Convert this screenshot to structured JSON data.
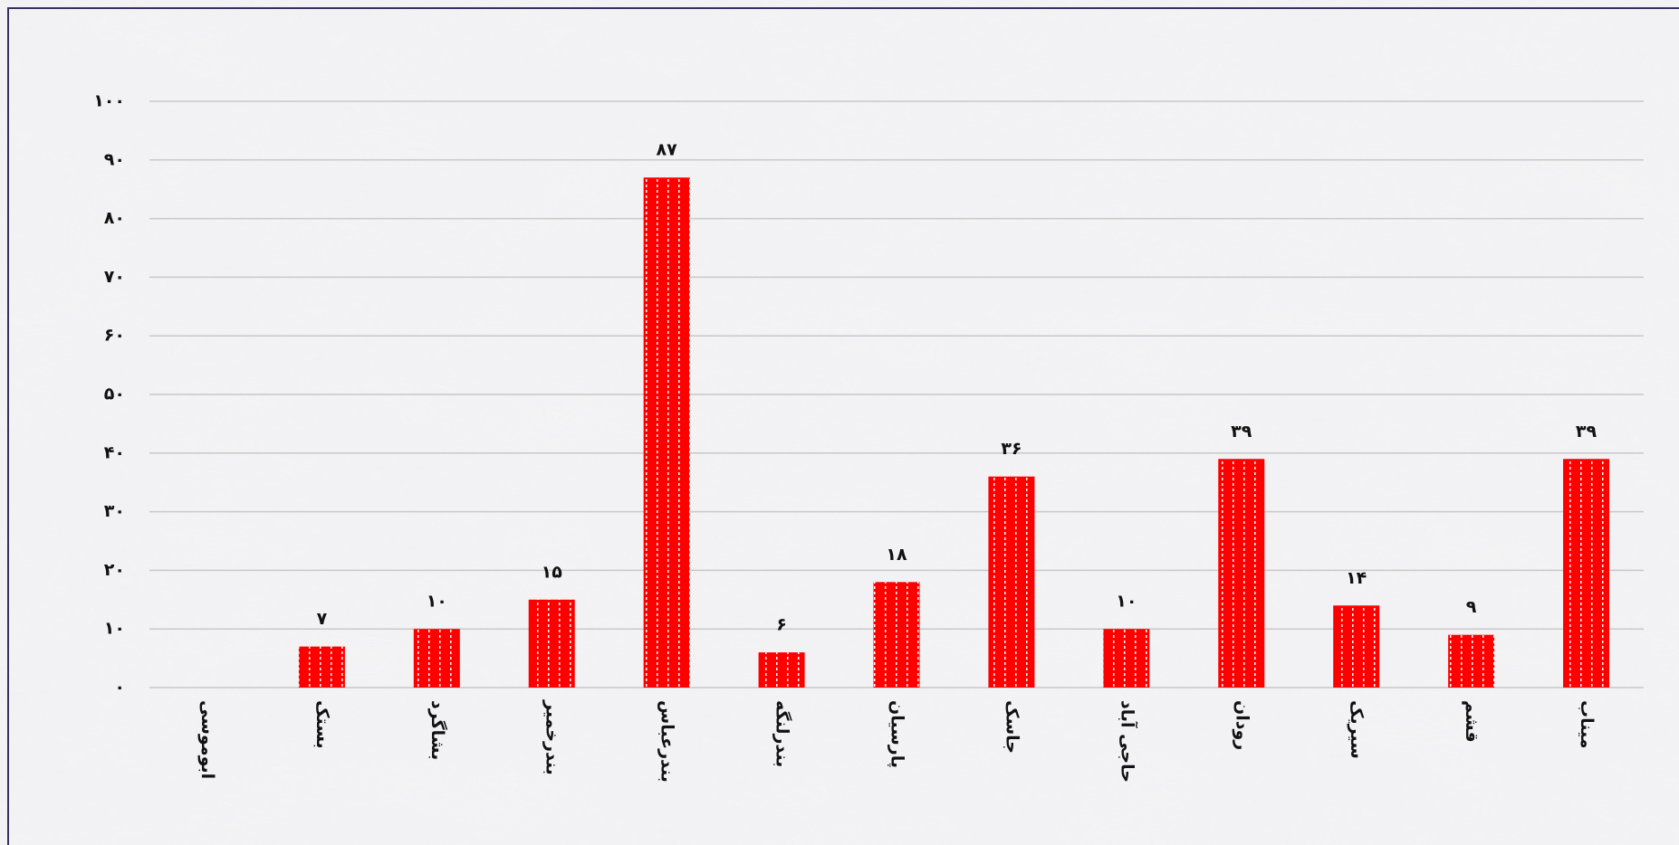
{
  "chart_data": {
    "type": "bar",
    "categories": [
      "ابوموسی",
      "بستک",
      "بشاگرد",
      "بندرخمیر",
      "بندرعباس",
      "بندرلنگه",
      "پارسیان",
      "جاسک",
      "حاجی آباد",
      "رودان",
      "سیریک",
      "قشم",
      "میناب"
    ],
    "values": [
      null,
      7,
      10,
      15,
      87,
      6,
      18,
      36,
      10,
      39,
      14,
      9,
      39
    ],
    "value_labels": [
      null,
      "۷",
      "۱۰",
      "۱۵",
      "۸۷",
      "۶",
      "۱۸",
      "۳۶",
      "۱۰",
      "۳۹",
      "۱۴",
      "۹",
      "۳۹"
    ],
    "color": "#ff0000",
    "ylim": [
      0,
      100
    ],
    "yticks": [
      {
        "value": 0,
        "label": "۰"
      },
      {
        "value": 10,
        "label": "۱۰"
      },
      {
        "value": 20,
        "label": "۲۰"
      },
      {
        "value": 30,
        "label": "۳۰"
      },
      {
        "value": 40,
        "label": "۴۰"
      },
      {
        "value": 50,
        "label": "۵۰"
      },
      {
        "value": 60,
        "label": "۶۰"
      },
      {
        "value": 70,
        "label": "۷۰"
      },
      {
        "value": 80,
        "label": "۸۰"
      },
      {
        "value": 90,
        "label": "۹۰"
      },
      {
        "value": 100,
        "label": "۱۰۰"
      }
    ],
    "grid": true
  }
}
